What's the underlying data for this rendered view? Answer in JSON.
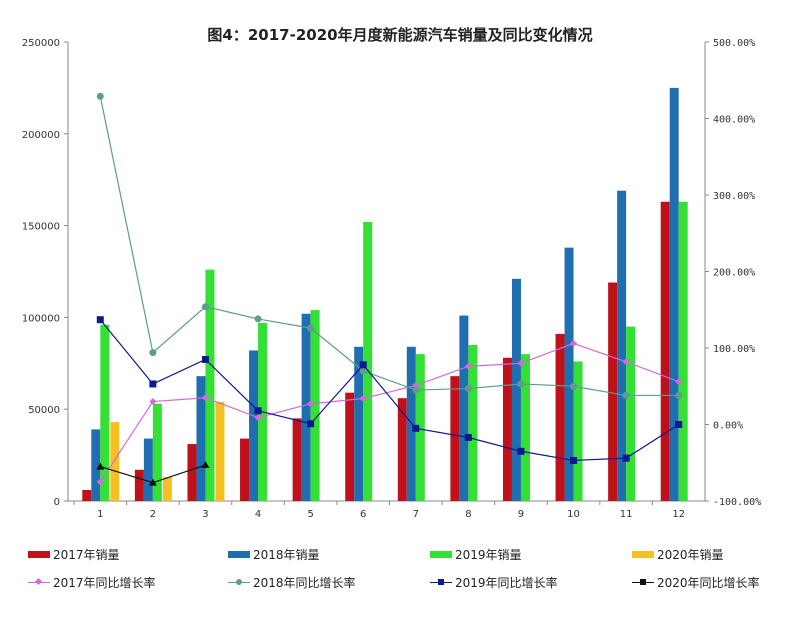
{
  "chart_data": {
    "type": "bar+line",
    "title": "图4：2017-2020年月度新能源汽车销量及同比变化情况",
    "categories": [
      "1",
      "2",
      "3",
      "4",
      "5",
      "6",
      "7",
      "8",
      "9",
      "10",
      "11",
      "12"
    ],
    "y_left": {
      "range": [
        0,
        250000
      ],
      "ticks": [
        "0",
        "50000",
        "100000",
        "150000",
        "200000",
        "250000"
      ]
    },
    "y_right": {
      "range": [
        -100,
        500
      ],
      "ticks": [
        "-100.00%",
        "0.00%",
        "100.00%",
        "200.00%",
        "300.00%",
        "400.00%",
        "500.00%"
      ]
    },
    "bar_series": [
      {
        "name": "2017年销量",
        "color": "#c0111b",
        "values": [
          6000,
          17000,
          31000,
          34000,
          45000,
          59000,
          56000,
          68000,
          78000,
          91000,
          119000,
          163000
        ]
      },
      {
        "name": "2018年销量",
        "color": "#1f6fb0",
        "values": [
          39000,
          34000,
          68000,
          82000,
          102000,
          84000,
          84000,
          101000,
          121000,
          138000,
          169000,
          225000
        ]
      },
      {
        "name": "2019年销量",
        "color": "#33e033",
        "values": [
          96000,
          53000,
          126000,
          97000,
          104000,
          152000,
          80000,
          85000,
          80000,
          76000,
          95000,
          163000
        ]
      },
      {
        "name": "2020年销量",
        "color": "#f5c021",
        "values": [
          43000,
          13000,
          54000
        ]
      }
    ],
    "line_series": [
      {
        "name": "2017年同比增长率",
        "color": "#d36bd6",
        "marker": "diamond",
        "values": [
          -75,
          30,
          35,
          9,
          27,
          34,
          51,
          76,
          80,
          106,
          82,
          56
        ]
      },
      {
        "name": "2018年同比增长率",
        "color": "#5e9c90",
        "marker": "circle",
        "values": [
          429,
          94,
          154,
          138,
          126,
          70,
          45,
          47,
          53,
          50,
          38,
          38
        ]
      },
      {
        "name": "2019年同比增长率",
        "color": "#10188f",
        "marker": "square",
        "values": [
          137,
          53,
          85,
          18,
          1,
          78,
          -5,
          -17,
          -35,
          -47,
          -44,
          0
        ]
      },
      {
        "name": "2020年同比增长率",
        "color": "#111111",
        "marker": "triangle",
        "values": [
          -55,
          -76,
          -53
        ]
      }
    ],
    "grid": false,
    "legend": "bottom"
  }
}
